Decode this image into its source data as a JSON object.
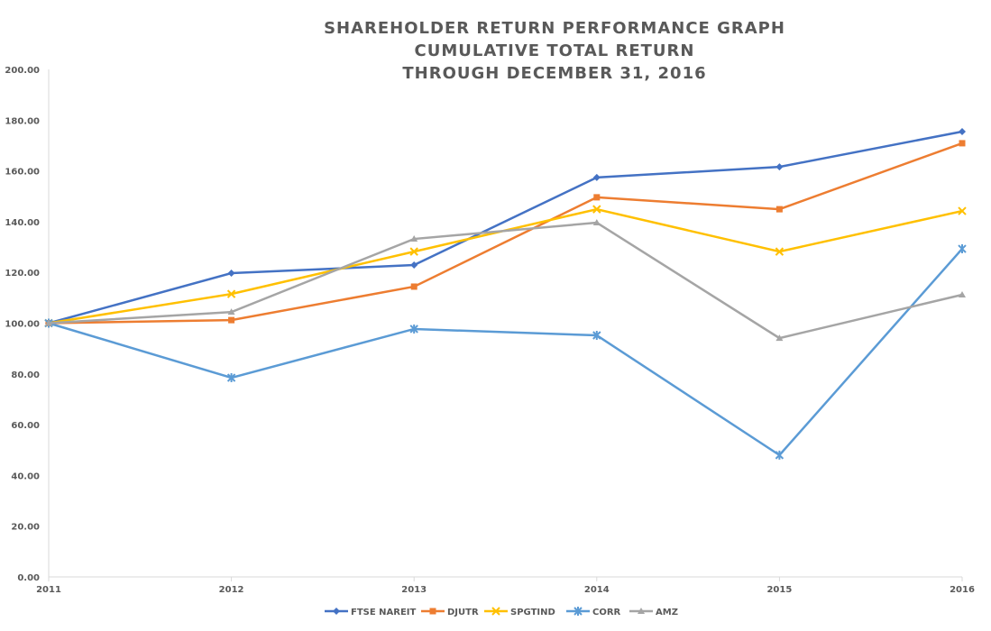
{
  "chart_data": {
    "type": "line",
    "title": [
      "SHAREHOLDER RETURN PERFORMANCE GRAPH",
      "CUMULATIVE TOTAL RETURN",
      "THROUGH DECEMBER 31, 2016"
    ],
    "xlabel": "",
    "ylabel": "",
    "categories": [
      "2011",
      "2012",
      "2013",
      "2014",
      "2015",
      "2016"
    ],
    "ylim": [
      0,
      200
    ],
    "yticks": [
      "0.00",
      "20.00",
      "40.00",
      "60.00",
      "80.00",
      "100.00",
      "120.00",
      "140.00",
      "160.00",
      "180.00",
      "200.00"
    ],
    "grid": false,
    "legend": "bottom",
    "series": [
      {
        "name": "FTSE NAREIT",
        "color": "#4472C4",
        "marker": "diamond",
        "values": [
          100,
          119.7,
          122.9,
          157.4,
          161.6,
          175.5
        ]
      },
      {
        "name": "DJUTR",
        "color": "#ED7D31",
        "marker": "square",
        "values": [
          100,
          101.2,
          114.4,
          149.6,
          144.9,
          170.9
        ]
      },
      {
        "name": "SPGTIND",
        "color": "#FFC000",
        "marker": "x",
        "values": [
          100,
          111.5,
          128.2,
          144.9,
          128.2,
          144.2
        ]
      },
      {
        "name": "CORR",
        "color": "#5B9BD5",
        "marker": "star",
        "values": [
          100,
          78.5,
          97.7,
          95.2,
          48.0,
          129.3
        ]
      },
      {
        "name": "AMZ",
        "color": "#A5A5A5",
        "marker": "triangle",
        "values": [
          100,
          104.4,
          133.2,
          139.6,
          94.1,
          111.2
        ]
      }
    ]
  }
}
